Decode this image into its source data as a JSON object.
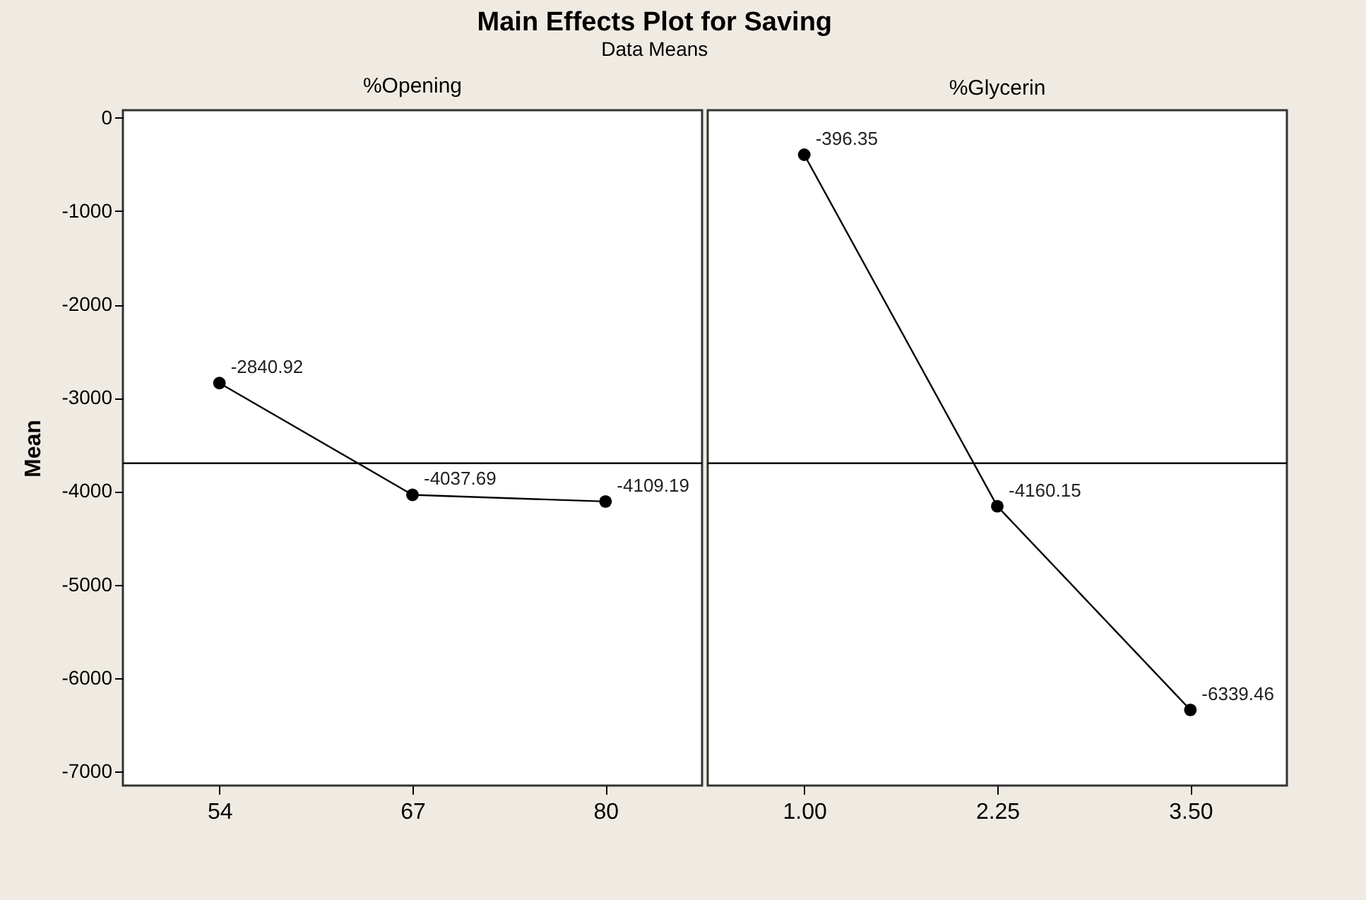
{
  "chart_data": [
    {
      "type": "line",
      "title": "Main Effects Plot for Saving",
      "subtitle": "Data Means",
      "ylabel": "Mean",
      "annotations": [
        "%Opening"
      ],
      "categories": [
        "54",
        "67",
        "80"
      ],
      "series": [
        {
          "color": "#000000",
          "values": [
            -2840.92,
            -4037.69,
            -4109.19
          ]
        }
      ],
      "ylim": [
        -7150,
        80
      ],
      "yticks": [
        0,
        -1000,
        -2000,
        -3000,
        -4000,
        -5000,
        -6000,
        -7000
      ],
      "marker": "circle",
      "data_labels": true,
      "ref_lines": [
        {
          "axis": "y",
          "value": -3700,
          "color": "#000000"
        }
      ]
    },
    {
      "type": "line",
      "annotations": [
        "%Glycerin"
      ],
      "categories": [
        "1.00",
        "2.25",
        "3.50"
      ],
      "series": [
        {
          "color": "#000000",
          "values": [
            -396.35,
            -4160.15,
            -6339.46
          ]
        }
      ],
      "ylim": [
        -7150,
        80
      ],
      "yticks": [
        0,
        -1000,
        -2000,
        -3000,
        -4000,
        -5000,
        -6000,
        -7000
      ],
      "marker": "circle",
      "data_labels": true,
      "tick_labels": "x",
      "ref_lines": [
        {
          "axis": "y",
          "value": -3700,
          "color": "#000000"
        }
      ]
    }
  ]
}
